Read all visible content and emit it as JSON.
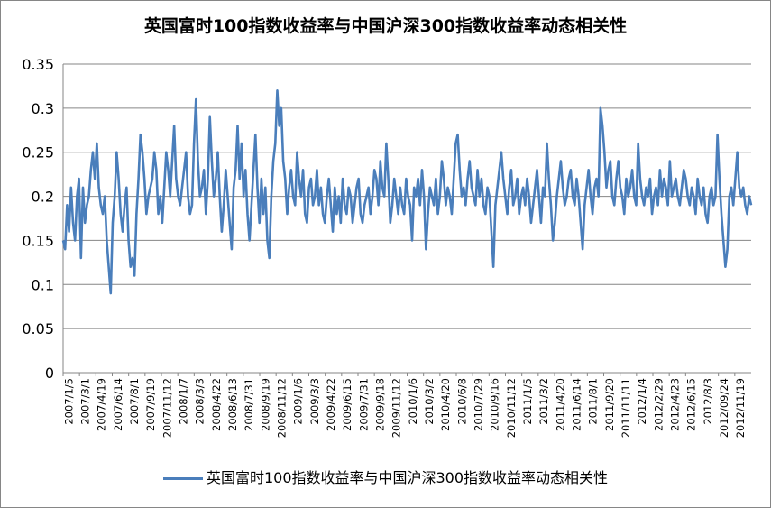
{
  "chart_data": {
    "type": "line",
    "title": "英国富时100指数收益率与中国沪深300指数收益率动态相关性",
    "ylim": [
      0,
      0.35
    ],
    "yticks": [
      "0",
      "0.05",
      "0.1",
      "0.15",
      "0.2",
      "0.25",
      "0.3",
      "0.35"
    ],
    "grid": true,
    "legend_position": "bottom",
    "x_tick_labels": [
      "2007/1/5",
      "2007/3/1",
      "2007/4/19",
      "2007/6/14",
      "2007/8/1",
      "2007/9/19",
      "2007/11/12",
      "2008/1/7",
      "2008/3/3",
      "2008/4/22",
      "2008/6/13",
      "2008/7/31",
      "2008/9/19",
      "2008/11/12",
      "2009/1/6",
      "2009/3/3",
      "2009/4/22",
      "2009/6/15",
      "2009/7/31",
      "2009/9/18",
      "2009/11/12",
      "2010/1/6",
      "2010/3/2",
      "2010/4/20",
      "2010/6/8",
      "2010/7/29",
      "2010/9/16",
      "2010/11/12",
      "2011/1/5",
      "2011/3/2",
      "2011/4/20",
      "2011/6/14",
      "2011/8/1",
      "2011/9/20",
      "2011/11/11",
      "2012/1/4",
      "2012/2/29",
      "2012/4/23",
      "2012/6/15",
      "2012/8/3",
      "2012/09/24",
      "2012/11/19"
    ],
    "series": [
      {
        "name": "英国富时100指数收益率与中国沪深300指数收益率动态相关性",
        "color": "#4A7EBB",
        "values": [
          0.15,
          0.14,
          0.19,
          0.16,
          0.21,
          0.17,
          0.15,
          0.2,
          0.22,
          0.13,
          0.21,
          0.17,
          0.19,
          0.2,
          0.23,
          0.25,
          0.22,
          0.26,
          0.21,
          0.19,
          0.18,
          0.2,
          0.15,
          0.12,
          0.09,
          0.17,
          0.2,
          0.25,
          0.22,
          0.18,
          0.16,
          0.19,
          0.21,
          0.15,
          0.12,
          0.13,
          0.11,
          0.18,
          0.22,
          0.27,
          0.25,
          0.22,
          0.18,
          0.2,
          0.21,
          0.22,
          0.25,
          0.23,
          0.18,
          0.2,
          0.17,
          0.21,
          0.25,
          0.23,
          0.2,
          0.24,
          0.28,
          0.22,
          0.2,
          0.19,
          0.21,
          0.23,
          0.25,
          0.2,
          0.18,
          0.19,
          0.26,
          0.31,
          0.24,
          0.2,
          0.21,
          0.23,
          0.18,
          0.22,
          0.29,
          0.24,
          0.2,
          0.22,
          0.25,
          0.2,
          0.16,
          0.19,
          0.23,
          0.2,
          0.17,
          0.14,
          0.21,
          0.23,
          0.28,
          0.22,
          0.26,
          0.2,
          0.23,
          0.18,
          0.15,
          0.19,
          0.23,
          0.27,
          0.21,
          0.17,
          0.22,
          0.18,
          0.21,
          0.15,
          0.13,
          0.2,
          0.24,
          0.26,
          0.32,
          0.28,
          0.3,
          0.24,
          0.22,
          0.18,
          0.21,
          0.23,
          0.2,
          0.19,
          0.25,
          0.22,
          0.2,
          0.23,
          0.18,
          0.17,
          0.21,
          0.22,
          0.19,
          0.2,
          0.23,
          0.19,
          0.21,
          0.18,
          0.17,
          0.2,
          0.22,
          0.19,
          0.16,
          0.21,
          0.18,
          0.2,
          0.17,
          0.22,
          0.19,
          0.18,
          0.21,
          0.2,
          0.17,
          0.19,
          0.21,
          0.22,
          0.18,
          0.17,
          0.19,
          0.2,
          0.21,
          0.18,
          0.2,
          0.23,
          0.22,
          0.19,
          0.24,
          0.21,
          0.2,
          0.26,
          0.22,
          0.17,
          0.19,
          0.22,
          0.2,
          0.18,
          0.21,
          0.19,
          0.18,
          0.22,
          0.2,
          0.19,
          0.15,
          0.21,
          0.2,
          0.22,
          0.19,
          0.23,
          0.2,
          0.14,
          0.18,
          0.21,
          0.2,
          0.19,
          0.22,
          0.18,
          0.2,
          0.24,
          0.22,
          0.19,
          0.21,
          0.2,
          0.18,
          0.22,
          0.26,
          0.27,
          0.23,
          0.2,
          0.21,
          0.19,
          0.22,
          0.24,
          0.21,
          0.2,
          0.19,
          0.23,
          0.2,
          0.22,
          0.19,
          0.18,
          0.21,
          0.2,
          0.16,
          0.12,
          0.19,
          0.21,
          0.23,
          0.25,
          0.22,
          0.2,
          0.18,
          0.21,
          0.23,
          0.19,
          0.2,
          0.22,
          0.18,
          0.2,
          0.21,
          0.19,
          0.22,
          0.2,
          0.17,
          0.19,
          0.21,
          0.23,
          0.2,
          0.17,
          0.21,
          0.2,
          0.26,
          0.22,
          0.19,
          0.15,
          0.17,
          0.2,
          0.22,
          0.24,
          0.21,
          0.19,
          0.2,
          0.22,
          0.23,
          0.2,
          0.19,
          0.22,
          0.2,
          0.17,
          0.14,
          0.19,
          0.21,
          0.23,
          0.2,
          0.18,
          0.21,
          0.22,
          0.2,
          0.3,
          0.28,
          0.25,
          0.21,
          0.23,
          0.24,
          0.2,
          0.19,
          0.22,
          0.24,
          0.21,
          0.2,
          0.18,
          0.22,
          0.2,
          0.21,
          0.23,
          0.2,
          0.19,
          0.26,
          0.22,
          0.2,
          0.19,
          0.21,
          0.2,
          0.22,
          0.18,
          0.2,
          0.21,
          0.19,
          0.23,
          0.2,
          0.22,
          0.21,
          0.19,
          0.24,
          0.2,
          0.21,
          0.22,
          0.2,
          0.19,
          0.21,
          0.23,
          0.22,
          0.2,
          0.19,
          0.21,
          0.2,
          0.18,
          0.22,
          0.2,
          0.19,
          0.21,
          0.18,
          0.17,
          0.2,
          0.21,
          0.19,
          0.2,
          0.27,
          0.22,
          0.18,
          0.15,
          0.12,
          0.14,
          0.2,
          0.21,
          0.19,
          0.22,
          0.25,
          0.21,
          0.2,
          0.21,
          0.19,
          0.18,
          0.2,
          0.19
        ]
      }
    ]
  }
}
